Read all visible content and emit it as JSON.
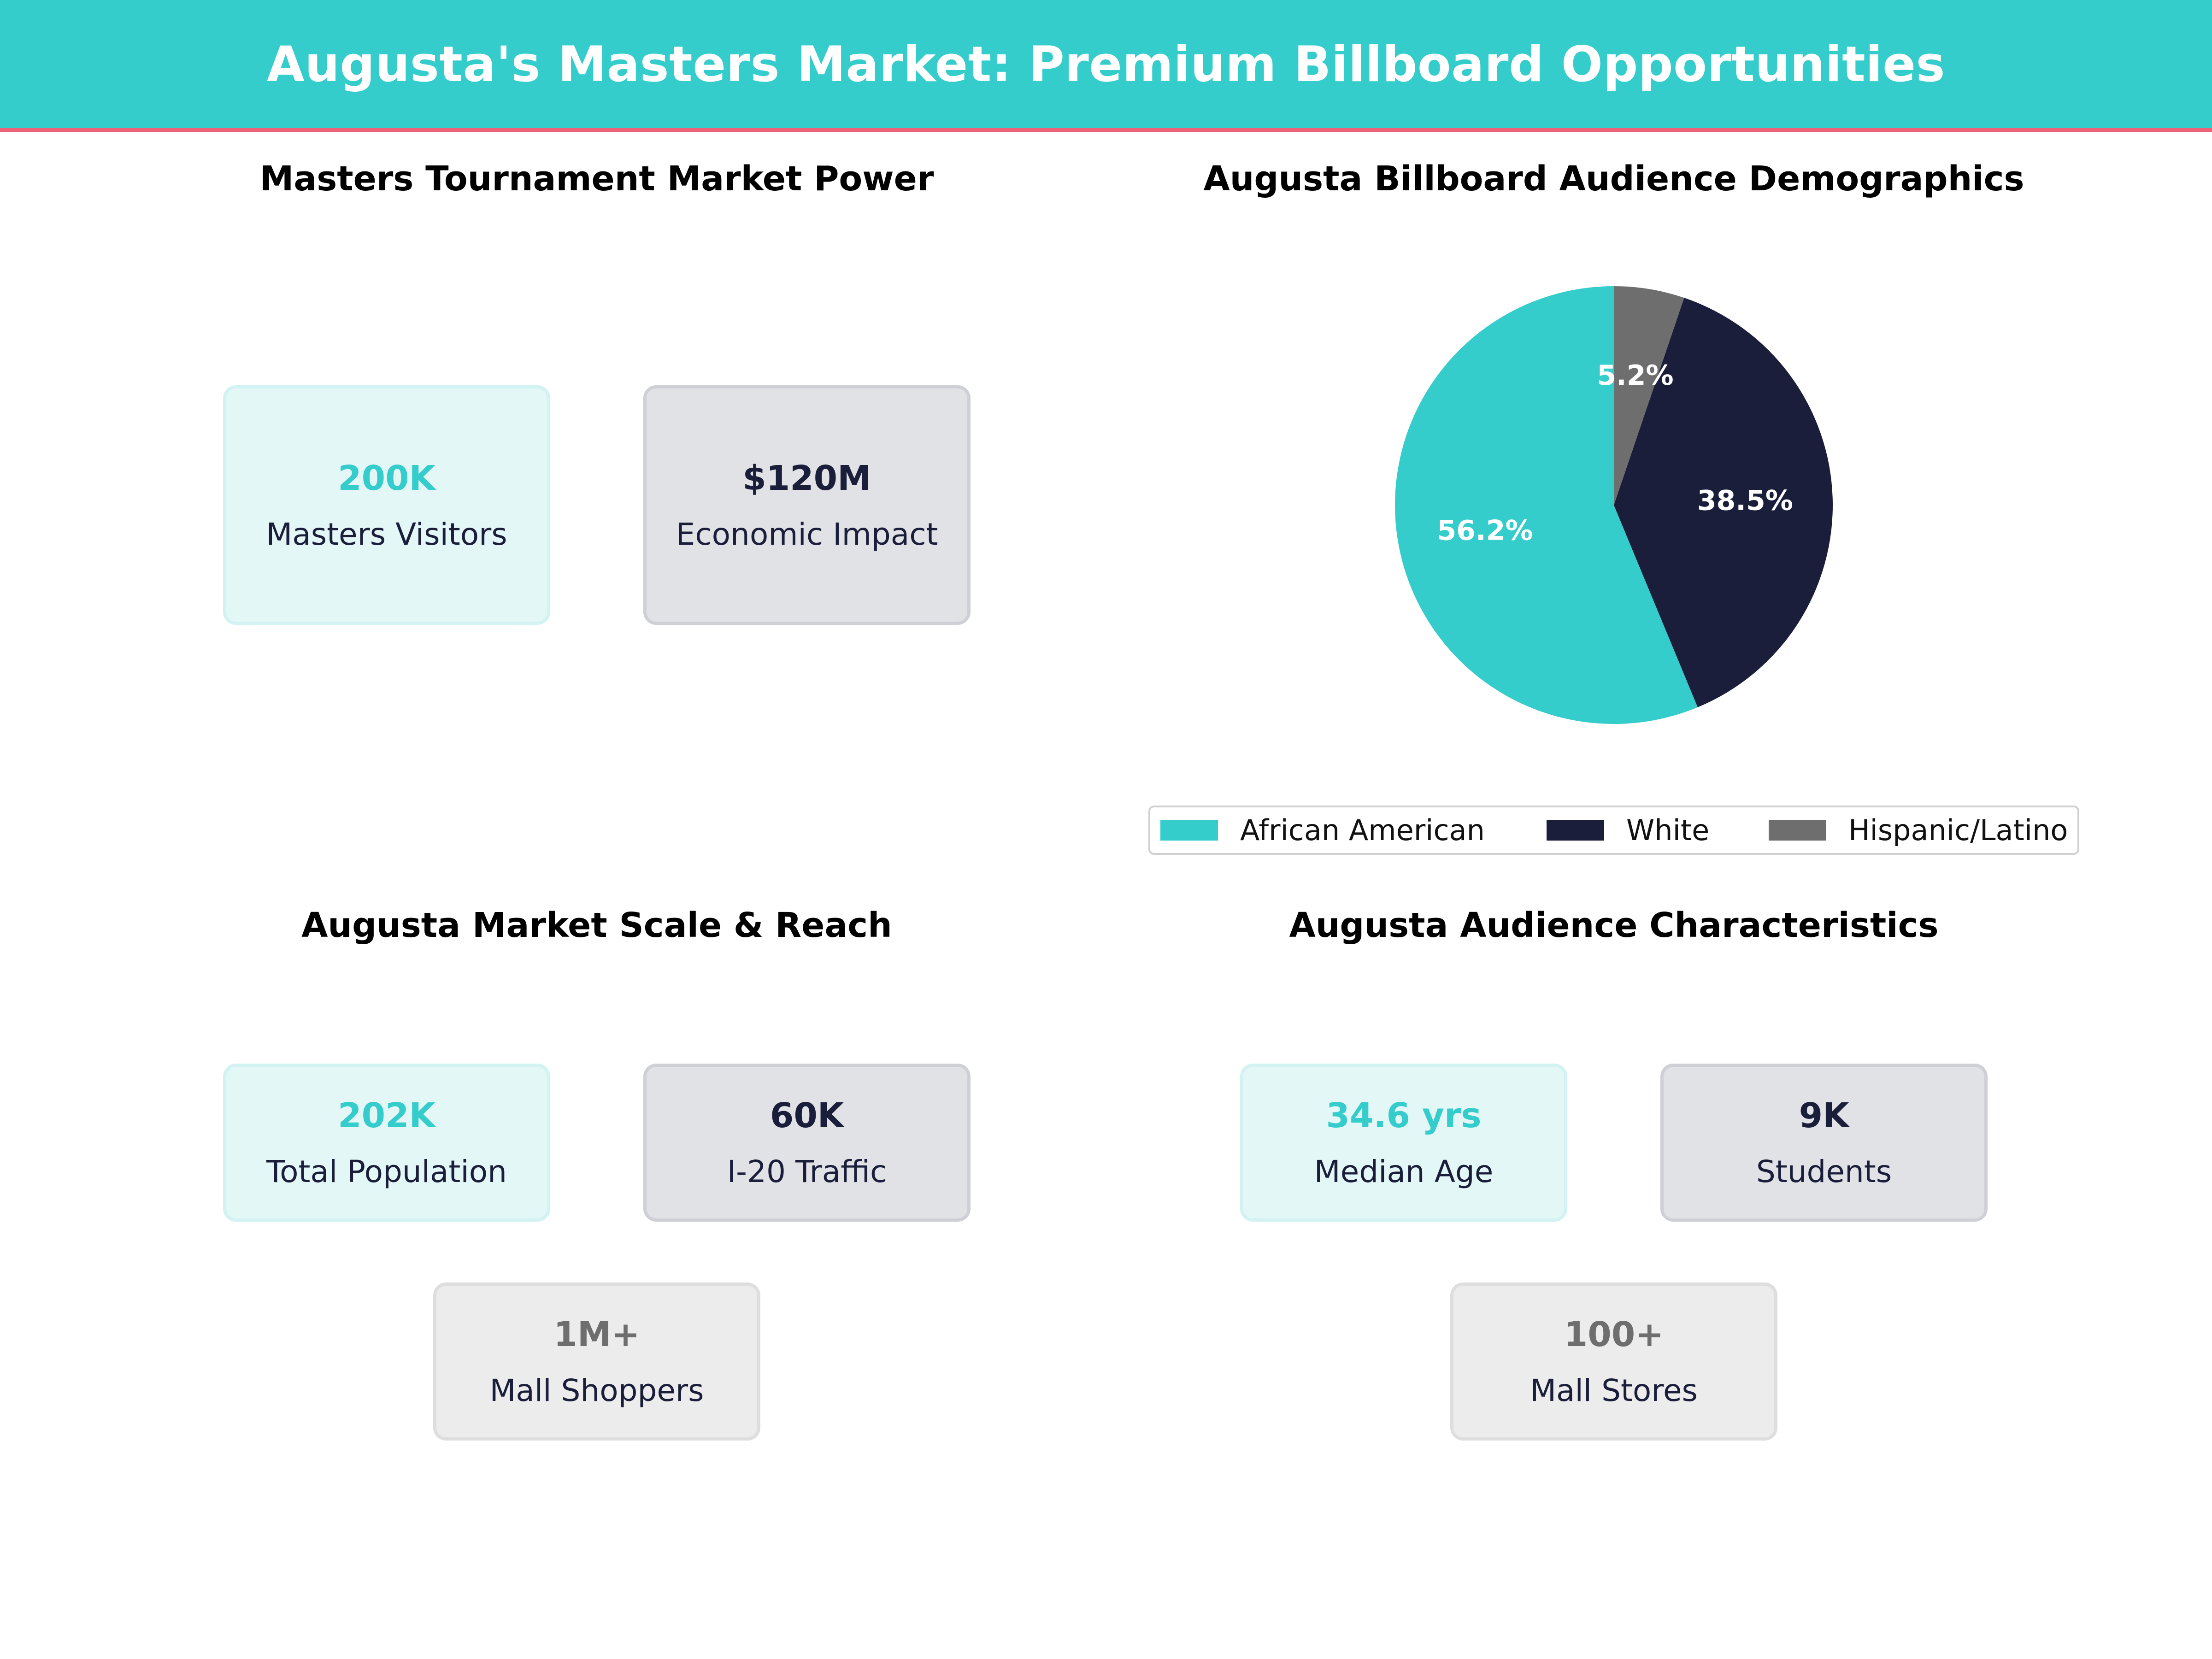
{
  "header": {
    "title": "Augusta's Masters Market: Premium Billboard Opportunities"
  },
  "colors": {
    "teal": "#35cccc",
    "navy": "#1a1e3a",
    "grey": "#6e6e6e",
    "accent_line": "#ef6079"
  },
  "sections": {
    "market_power": {
      "title": "Masters Tournament Market Power",
      "cards": [
        {
          "value": "200K",
          "label": "Masters Visitors",
          "style": "teal"
        },
        {
          "value": "$120M",
          "label": "Economic Impact",
          "style": "navy"
        }
      ]
    },
    "demographics": {
      "title": "Augusta Billboard Audience Demographics"
    },
    "scale_reach": {
      "title": "Augusta Market Scale & Reach",
      "cards": [
        {
          "value": "202K",
          "label": "Total Population",
          "style": "teal"
        },
        {
          "value": "60K",
          "label": "I-20 Traffic",
          "style": "navy"
        },
        {
          "value": "1M+",
          "label": "Mall Shoppers",
          "style": "grey"
        }
      ]
    },
    "characteristics": {
      "title": "Augusta Audience Characteristics",
      "cards": [
        {
          "value": "34.6 yrs",
          "label": "Median Age",
          "style": "teal"
        },
        {
          "value": "9K",
          "label": "Students",
          "style": "navy"
        },
        {
          "value": "100+",
          "label": "Mall Stores",
          "style": "grey"
        }
      ]
    }
  },
  "chart_data": {
    "type": "pie",
    "title": "Augusta Billboard Audience Demographics",
    "categories": [
      "African American",
      "White",
      "Hispanic/Latino"
    ],
    "values": [
      56.2,
      38.5,
      5.2
    ],
    "labels": [
      "56.2%",
      "38.5%",
      "5.2%"
    ],
    "colors": [
      "#35cccc",
      "#1a1e3a",
      "#6e6e6e"
    ],
    "start_angle": 90,
    "direction": "counterclockwise",
    "legend_position": "bottom",
    "legend": [
      "African American",
      "White",
      "Hispanic/Latino"
    ]
  }
}
